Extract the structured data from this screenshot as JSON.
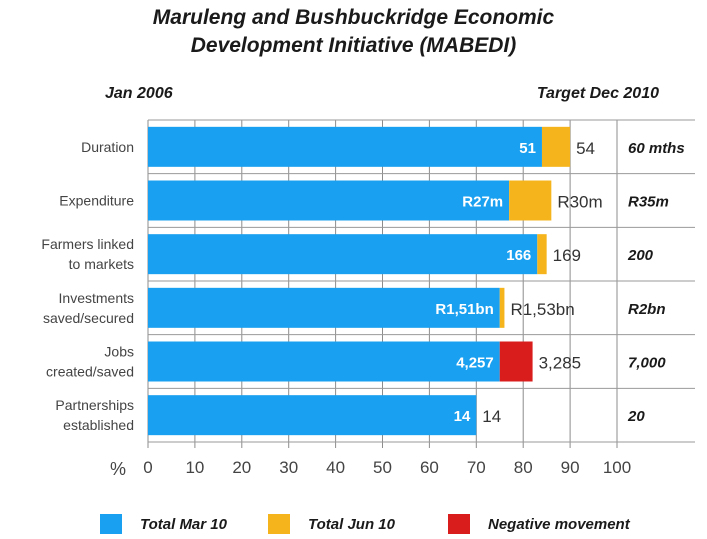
{
  "title_line1": "Maruleng and Bushbuckridge Economic",
  "title_line2": "Development Initiative (MABEDI)",
  "subtitle_left": "Jan 2006",
  "subtitle_right": "Target Dec 2010",
  "colors": {
    "total_mar_10": "#1aa0f0",
    "total_jun_10": "#f5b41c",
    "negative_movement": "#d91c1c"
  },
  "legend": [
    {
      "label": "Total Mar 10",
      "color": "#1aa0f0"
    },
    {
      "label": "Total Jun 10",
      "color": "#f5b41c"
    },
    {
      "label": "Negative movement",
      "color": "#d91c1c"
    }
  ],
  "chart_data": {
    "type": "bar",
    "orientation": "horizontal",
    "stacked": true,
    "xlabel": "%",
    "xlim": [
      0,
      100
    ],
    "xticks": [
      0,
      10,
      20,
      30,
      40,
      50,
      60,
      70,
      80,
      90,
      100
    ],
    "grid": "vertical",
    "categories": [
      [
        "Duration"
      ],
      [
        "Expenditure"
      ],
      [
        "Farmers linked",
        "to markets"
      ],
      [
        "Investments",
        "saved/secured"
      ],
      [
        "Jobs",
        "created/saved"
      ],
      [
        "Partnerships",
        "established"
      ]
    ],
    "series": [
      {
        "name": "Total Mar 10",
        "values": [
          84,
          77,
          83,
          75,
          75,
          70
        ]
      },
      {
        "name": "Total Jun 10",
        "values": [
          6,
          9,
          2,
          1,
          0,
          0
        ]
      },
      {
        "name": "Negative movement",
        "values": [
          0,
          0,
          0,
          0,
          7,
          0
        ]
      }
    ],
    "inner_labels": [
      "51",
      "R27m",
      "166",
      "R1,51bn",
      "4,257",
      "14"
    ],
    "end_labels": [
      "54",
      "R30m",
      "169",
      "R1,53bn",
      "3,285",
      "14"
    ],
    "targets": [
      "60 mths",
      "R35m",
      "200",
      "R2bn",
      "7,000",
      "20"
    ]
  }
}
